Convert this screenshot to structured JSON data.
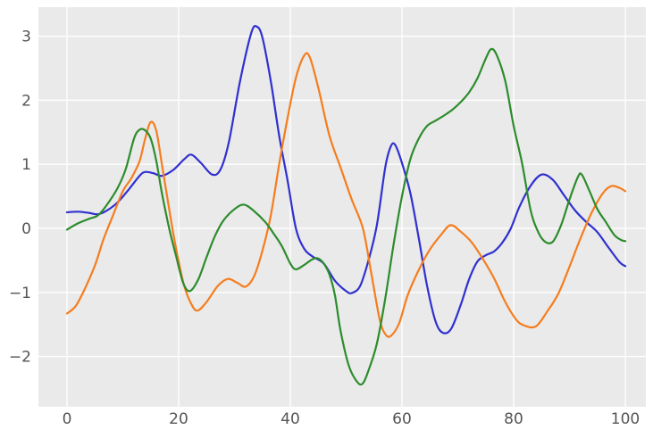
{
  "figure": {
    "background": "#ffffff"
  },
  "chart_data": {
    "type": "line",
    "title": "",
    "xlabel": "",
    "ylabel": "",
    "grid": true,
    "legend_position": "none",
    "plot_background": "#eaeaea",
    "grid_color": "#ffffff",
    "tick_color": "#555555",
    "tick_font_px": 17,
    "xlim": [
      -5.12,
      103.68
    ],
    "ylim": [
      -2.786,
      3.454
    ],
    "x_ticks": {
      "values": [
        0,
        20,
        40,
        60,
        80,
        100
      ],
      "labels": [
        "0",
        "20",
        "40",
        "60",
        "80",
        "100"
      ]
    },
    "y_ticks": {
      "values": [
        -2,
        -1,
        0,
        1,
        2,
        3
      ],
      "labels": [
        "−2",
        "−1",
        "0",
        "1",
        "2",
        "3"
      ]
    },
    "series": [
      {
        "name": "series-blue",
        "color": "#3030d0",
        "line_width": 2.2,
        "points": [
          [
            0,
            0.25
          ],
          [
            2,
            0.26
          ],
          [
            4,
            0.24
          ],
          [
            5.5,
            0.22
          ],
          [
            7,
            0.27
          ],
          [
            9,
            0.4
          ],
          [
            11,
            0.6
          ],
          [
            13,
            0.82
          ],
          [
            14,
            0.88
          ],
          [
            15.5,
            0.86
          ],
          [
            17,
            0.82
          ],
          [
            19,
            0.91
          ],
          [
            21,
            1.08
          ],
          [
            22.3,
            1.15
          ],
          [
            24,
            1.02
          ],
          [
            26,
            0.84
          ],
          [
            27.5,
            0.92
          ],
          [
            29,
            1.35
          ],
          [
            31,
            2.3
          ],
          [
            33,
            3.05
          ],
          [
            34,
            3.15
          ],
          [
            35,
            2.98
          ],
          [
            36.5,
            2.3
          ],
          [
            38,
            1.45
          ],
          [
            39.5,
            0.75
          ],
          [
            41,
            0.0
          ],
          [
            42.5,
            -0.32
          ],
          [
            44,
            -0.44
          ],
          [
            46,
            -0.55
          ],
          [
            48,
            -0.82
          ],
          [
            50,
            -0.98
          ],
          [
            51,
            -1.01
          ],
          [
            52.5,
            -0.9
          ],
          [
            54,
            -0.5
          ],
          [
            55.5,
            0.05
          ],
          [
            57,
            0.95
          ],
          [
            58,
            1.28
          ],
          [
            58.8,
            1.3
          ],
          [
            60,
            1.02
          ],
          [
            61.5,
            0.55
          ],
          [
            63,
            -0.15
          ],
          [
            64.5,
            -0.9
          ],
          [
            66,
            -1.45
          ],
          [
            67.3,
            -1.63
          ],
          [
            68.8,
            -1.57
          ],
          [
            70.5,
            -1.2
          ],
          [
            72,
            -0.8
          ],
          [
            73.5,
            -0.52
          ],
          [
            75,
            -0.42
          ],
          [
            76.5,
            -0.36
          ],
          [
            78,
            -0.22
          ],
          [
            79.5,
            0.0
          ],
          [
            81,
            0.33
          ],
          [
            83,
            0.66
          ],
          [
            85,
            0.84
          ],
          [
            87,
            0.76
          ],
          [
            89,
            0.52
          ],
          [
            91,
            0.28
          ],
          [
            93,
            0.1
          ],
          [
            95,
            -0.06
          ],
          [
            97,
            -0.3
          ],
          [
            99,
            -0.53
          ],
          [
            100,
            -0.59
          ]
        ]
      },
      {
        "name": "series-orange",
        "color": "#f57d1e",
        "line_width": 2.2,
        "points": [
          [
            0,
            -1.33
          ],
          [
            1.5,
            -1.22
          ],
          [
            3,
            -0.98
          ],
          [
            5,
            -0.58
          ],
          [
            6.5,
            -0.18
          ],
          [
            8,
            0.15
          ],
          [
            10,
            0.58
          ],
          [
            11.5,
            0.78
          ],
          [
            13,
            1.05
          ],
          [
            14,
            1.4
          ],
          [
            15,
            1.66
          ],
          [
            16,
            1.52
          ],
          [
            17,
            1.0
          ],
          [
            18.4,
            0.25
          ],
          [
            19.5,
            -0.3
          ],
          [
            21,
            -0.9
          ],
          [
            22.5,
            -1.22
          ],
          [
            23.5,
            -1.28
          ],
          [
            25,
            -1.15
          ],
          [
            27,
            -0.9
          ],
          [
            28.8,
            -0.79
          ],
          [
            30.5,
            -0.85
          ],
          [
            32,
            -0.91
          ],
          [
            33.5,
            -0.75
          ],
          [
            35,
            -0.35
          ],
          [
            36.5,
            0.2
          ],
          [
            38,
            1.0
          ],
          [
            39.5,
            1.72
          ],
          [
            41,
            2.35
          ],
          [
            42.5,
            2.7
          ],
          [
            43.5,
            2.67
          ],
          [
            45,
            2.2
          ],
          [
            47,
            1.45
          ],
          [
            49,
            0.95
          ],
          [
            51,
            0.45
          ],
          [
            53,
            0.0
          ],
          [
            54.5,
            -0.7
          ],
          [
            56,
            -1.42
          ],
          [
            57,
            -1.65
          ],
          [
            58,
            -1.68
          ],
          [
            59.5,
            -1.48
          ],
          [
            61,
            -1.05
          ],
          [
            63,
            -0.65
          ],
          [
            65,
            -0.33
          ],
          [
            67,
            -0.1
          ],
          [
            68.7,
            0.05
          ],
          [
            70.5,
            -0.05
          ],
          [
            72.5,
            -0.22
          ],
          [
            74.5,
            -0.48
          ],
          [
            76.5,
            -0.78
          ],
          [
            78.5,
            -1.15
          ],
          [
            80.5,
            -1.43
          ],
          [
            82,
            -1.52
          ],
          [
            84,
            -1.53
          ],
          [
            86,
            -1.3
          ],
          [
            88,
            -1.02
          ],
          [
            90,
            -0.6
          ],
          [
            92,
            -0.15
          ],
          [
            94,
            0.25
          ],
          [
            96,
            0.55
          ],
          [
            97.5,
            0.66
          ],
          [
            99,
            0.63
          ],
          [
            100,
            0.58
          ]
        ]
      },
      {
        "name": "series-green",
        "color": "#2d8c2d",
        "line_width": 2.2,
        "points": [
          [
            0,
            -0.02
          ],
          [
            2,
            0.08
          ],
          [
            4,
            0.15
          ],
          [
            5.5,
            0.2
          ],
          [
            7,
            0.35
          ],
          [
            9,
            0.62
          ],
          [
            10.5,
            0.92
          ],
          [
            12,
            1.4
          ],
          [
            13,
            1.54
          ],
          [
            14,
            1.53
          ],
          [
            15,
            1.4
          ],
          [
            16,
            1.05
          ],
          [
            17,
            0.55
          ],
          [
            18.3,
            0.0
          ],
          [
            19.5,
            -0.42
          ],
          [
            20.8,
            -0.85
          ],
          [
            22,
            -0.98
          ],
          [
            23.5,
            -0.8
          ],
          [
            25,
            -0.45
          ],
          [
            26.5,
            -0.12
          ],
          [
            28,
            0.12
          ],
          [
            30,
            0.3
          ],
          [
            31.7,
            0.37
          ],
          [
            33.5,
            0.27
          ],
          [
            35.5,
            0.1
          ],
          [
            37,
            -0.08
          ],
          [
            38.5,
            -0.28
          ],
          [
            40,
            -0.55
          ],
          [
            41,
            -0.64
          ],
          [
            42.5,
            -0.57
          ],
          [
            44,
            -0.48
          ],
          [
            45,
            -0.47
          ],
          [
            46,
            -0.55
          ],
          [
            47,
            -0.72
          ],
          [
            48,
            -1.05
          ],
          [
            49,
            -1.6
          ],
          [
            50.5,
            -2.15
          ],
          [
            52,
            -2.4
          ],
          [
            53,
            -2.42
          ],
          [
            54,
            -2.22
          ],
          [
            55.5,
            -1.8
          ],
          [
            57,
            -1.1
          ],
          [
            58.5,
            -0.25
          ],
          [
            60,
            0.5
          ],
          [
            61.5,
            1.08
          ],
          [
            63,
            1.4
          ],
          [
            64.5,
            1.6
          ],
          [
            66,
            1.68
          ],
          [
            67.5,
            1.76
          ],
          [
            69,
            1.85
          ],
          [
            70.5,
            1.97
          ],
          [
            72,
            2.12
          ],
          [
            73.5,
            2.34
          ],
          [
            75,
            2.65
          ],
          [
            76,
            2.8
          ],
          [
            77,
            2.7
          ],
          [
            78.5,
            2.3
          ],
          [
            80,
            1.6
          ],
          [
            81.5,
            1.02
          ],
          [
            83,
            0.3
          ],
          [
            84.2,
            -0.02
          ],
          [
            85.5,
            -0.2
          ],
          [
            87,
            -0.21
          ],
          [
            88.5,
            0.05
          ],
          [
            90,
            0.45
          ],
          [
            91.5,
            0.8
          ],
          [
            92.2,
            0.84
          ],
          [
            93.5,
            0.6
          ],
          [
            95,
            0.3
          ],
          [
            96.5,
            0.1
          ],
          [
            98,
            -0.1
          ],
          [
            99.2,
            -0.18
          ],
          [
            100,
            -0.2
          ]
        ]
      }
    ]
  }
}
